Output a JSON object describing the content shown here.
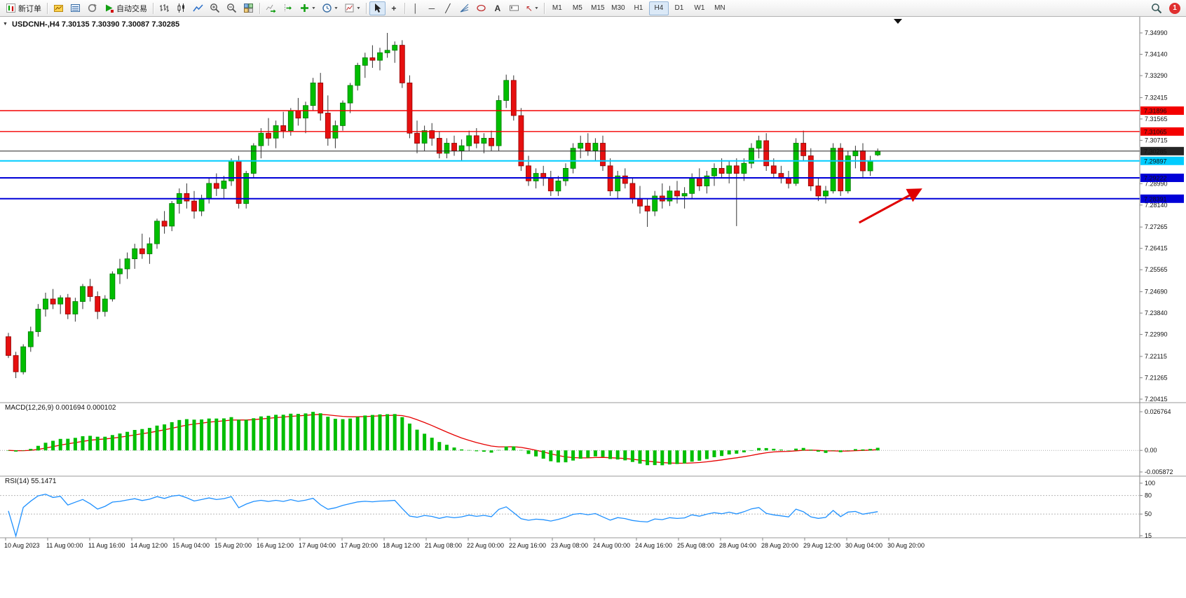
{
  "toolbar": {
    "new_order_label": "新订单",
    "autotrade_label": "自动交易",
    "text_tool_label": "A",
    "timeframes": [
      "M1",
      "M5",
      "M15",
      "M30",
      "H1",
      "H4",
      "D1",
      "W1",
      "MN"
    ],
    "active_timeframe": "H4",
    "notification_count": "1"
  },
  "icons": {
    "collapse": "▼",
    "caret": "▼",
    "vline": "│",
    "hline": "─",
    "trendline": "╱",
    "crosshair": "+",
    "arrows_tool": "↖"
  },
  "chart": {
    "title": "USDCNH-,H4 7.30135 7.30390 7.30087 7.30285"
  },
  "indicators": {
    "macd_label": "MACD(12,26,9) 0.001694 0.000102",
    "rsi_label": "RSI(14) 55.1471"
  },
  "chart_data": {
    "type": "candlestick",
    "symbol": "USDCNH-",
    "timeframe": "H4",
    "last_ohlc": {
      "open": 7.30135,
      "high": 7.3039,
      "low": 7.30087,
      "close": 7.30285
    },
    "price_range": {
      "top": 7.3499,
      "bottom": 7.20415
    },
    "colors": {
      "candle_up": "#00BE00",
      "candle_down": "#E61010",
      "wick": "#333333"
    },
    "y_axis_labels": [
      "7.34990",
      "7.34140",
      "7.33290",
      "7.32415",
      "7.31565",
      "7.30715",
      "7.28990",
      "7.28140",
      "7.27265",
      "7.26415",
      "7.25565",
      "7.24690",
      "7.23840",
      "7.22990",
      "7.22115",
      "7.21265",
      "7.20415"
    ],
    "x_labels": [
      "10 Aug 2023",
      "11 Aug 00:00",
      "11 Aug 16:00",
      "14 Aug 12:00",
      "15 Aug 04:00",
      "15 Aug 20:00",
      "16 Aug 12:00",
      "17 Aug 04:00",
      "17 Aug 20:00",
      "18 Aug 12:00",
      "21 Aug 08:00",
      "22 Aug 00:00",
      "22 Aug 16:00",
      "23 Aug 08:00",
      "24 Aug 00:00",
      "24 Aug 16:00",
      "25 Aug 08:00",
      "28 Aug 04:00",
      "28 Aug 20:00",
      "29 Aug 12:00",
      "30 Aug 04:00",
      "30 Aug 20:00"
    ],
    "ohlc": [
      [
        7.229,
        7.2305,
        7.2205,
        7.2215
      ],
      [
        7.2215,
        7.223,
        7.2125,
        7.215
      ],
      [
        7.215,
        7.226,
        7.214,
        7.225
      ],
      [
        7.225,
        7.233,
        7.223,
        7.231
      ],
      [
        7.231,
        7.242,
        7.229,
        7.24
      ],
      [
        7.24,
        7.2465,
        7.237,
        7.244
      ],
      [
        7.244,
        7.248,
        7.24,
        7.242
      ],
      [
        7.242,
        7.2455,
        7.238,
        7.2445
      ],
      [
        7.2445,
        7.246,
        7.236,
        7.238
      ],
      [
        7.238,
        7.2445,
        7.235,
        7.243
      ],
      [
        7.243,
        7.25,
        7.24,
        7.249
      ],
      [
        7.249,
        7.252,
        7.243,
        7.245
      ],
      [
        7.245,
        7.247,
        7.236,
        7.239
      ],
      [
        7.239,
        7.2455,
        7.237,
        7.244
      ],
      [
        7.244,
        7.255,
        7.243,
        7.254
      ],
      [
        7.254,
        7.26,
        7.25,
        7.256
      ],
      [
        7.256,
        7.2625,
        7.252,
        7.26
      ],
      [
        7.26,
        7.266,
        7.256,
        7.264
      ],
      [
        7.264,
        7.27,
        7.26,
        7.262
      ],
      [
        7.262,
        7.2685,
        7.258,
        7.266
      ],
      [
        7.266,
        7.276,
        7.264,
        7.275
      ],
      [
        7.275,
        7.279,
        7.27,
        7.273
      ],
      [
        7.273,
        7.283,
        7.271,
        7.282
      ],
      [
        7.282,
        7.288,
        7.278,
        7.286
      ],
      [
        7.286,
        7.29,
        7.28,
        7.283
      ],
      [
        7.283,
        7.287,
        7.276,
        7.279
      ],
      [
        7.279,
        7.2855,
        7.277,
        7.284
      ],
      [
        7.284,
        7.292,
        7.282,
        7.29
      ],
      [
        7.29,
        7.294,
        7.285,
        7.288
      ],
      [
        7.288,
        7.293,
        7.284,
        7.291
      ],
      [
        7.291,
        7.3,
        7.289,
        7.299
      ],
      [
        7.299,
        7.301,
        7.28,
        7.282
      ],
      [
        7.282,
        7.295,
        7.28,
        7.294
      ],
      [
        7.294,
        7.306,
        7.292,
        7.305
      ],
      [
        7.305,
        7.312,
        7.3,
        7.31
      ],
      [
        7.31,
        7.316,
        7.305,
        7.308
      ],
      [
        7.308,
        7.315,
        7.304,
        7.313
      ],
      [
        7.313,
        7.3185,
        7.308,
        7.311
      ],
      [
        7.311,
        7.32,
        7.309,
        7.319
      ],
      [
        7.319,
        7.324,
        7.313,
        7.316
      ],
      [
        7.316,
        7.3225,
        7.31,
        7.321
      ],
      [
        7.321,
        7.332,
        7.319,
        7.33
      ],
      [
        7.33,
        7.334,
        7.315,
        7.318
      ],
      [
        7.318,
        7.325,
        7.305,
        7.308
      ],
      [
        7.308,
        7.315,
        7.304,
        7.313
      ],
      [
        7.313,
        7.323,
        7.311,
        7.322
      ],
      [
        7.322,
        7.33,
        7.318,
        7.329
      ],
      [
        7.329,
        7.338,
        7.327,
        7.337
      ],
      [
        7.337,
        7.342,
        7.332,
        7.34
      ],
      [
        7.34,
        7.345,
        7.336,
        7.339
      ],
      [
        7.339,
        7.344,
        7.335,
        7.342
      ],
      [
        7.342,
        7.3499,
        7.34,
        7.343
      ],
      [
        7.343,
        7.3465,
        7.338,
        7.345
      ],
      [
        7.345,
        7.347,
        7.328,
        7.33
      ],
      [
        7.33,
        7.333,
        7.308,
        7.31
      ],
      [
        7.31,
        7.315,
        7.302,
        7.306
      ],
      [
        7.306,
        7.313,
        7.303,
        7.311
      ],
      [
        7.311,
        7.314,
        7.305,
        7.308
      ],
      [
        7.308,
        7.3105,
        7.3,
        7.302
      ],
      [
        7.302,
        7.308,
        7.3,
        7.306
      ],
      [
        7.306,
        7.309,
        7.301,
        7.303
      ],
      [
        7.303,
        7.3075,
        7.299,
        7.305
      ],
      [
        7.305,
        7.311,
        7.303,
        7.309
      ],
      [
        7.309,
        7.312,
        7.304,
        7.306
      ],
      [
        7.306,
        7.31,
        7.302,
        7.308
      ],
      [
        7.308,
        7.311,
        7.303,
        7.305
      ],
      [
        7.305,
        7.325,
        7.303,
        7.323
      ],
      [
        7.323,
        7.3333,
        7.32,
        7.331
      ],
      [
        7.331,
        7.333,
        7.315,
        7.317
      ],
      [
        7.317,
        7.32,
        7.295,
        7.297
      ],
      [
        7.297,
        7.301,
        7.289,
        7.291
      ],
      [
        7.291,
        7.296,
        7.288,
        7.294
      ],
      [
        7.294,
        7.297,
        7.289,
        7.292
      ],
      [
        7.292,
        7.295,
        7.285,
        7.287
      ],
      [
        7.287,
        7.293,
        7.285,
        7.291
      ],
      [
        7.291,
        7.298,
        7.289,
        7.296
      ],
      [
        7.296,
        7.306,
        7.294,
        7.304
      ],
      [
        7.304,
        7.309,
        7.3,
        7.306
      ],
      [
        7.306,
        7.31,
        7.301,
        7.303
      ],
      [
        7.303,
        7.308,
        7.299,
        7.306
      ],
      [
        7.306,
        7.309,
        7.295,
        7.297
      ],
      [
        7.297,
        7.3,
        7.285,
        7.287
      ],
      [
        7.287,
        7.295,
        7.284,
        7.293
      ],
      [
        7.293,
        7.296,
        7.288,
        7.29
      ],
      [
        7.29,
        7.292,
        7.282,
        7.284
      ],
      [
        7.284,
        7.289,
        7.278,
        7.281
      ],
      [
        7.281,
        7.284,
        7.2727,
        7.279
      ],
      [
        7.279,
        7.287,
        7.277,
        7.285
      ],
      [
        7.285,
        7.29,
        7.28,
        7.283
      ],
      [
        7.283,
        7.289,
        7.281,
        7.287
      ],
      [
        7.287,
        7.291,
        7.282,
        7.285
      ],
      [
        7.285,
        7.2885,
        7.28,
        7.286
      ],
      [
        7.286,
        7.294,
        7.284,
        7.292
      ],
      [
        7.292,
        7.296,
        7.287,
        7.289
      ],
      [
        7.289,
        7.295,
        7.286,
        7.293
      ],
      [
        7.293,
        7.298,
        7.289,
        7.296
      ],
      [
        7.296,
        7.3,
        7.292,
        7.294
      ],
      [
        7.294,
        7.299,
        7.29,
        7.297
      ],
      [
        7.297,
        7.3,
        7.273,
        7.294
      ],
      [
        7.294,
        7.3,
        7.291,
        7.298
      ],
      [
        7.298,
        7.306,
        7.296,
        7.304
      ],
      [
        7.304,
        7.309,
        7.3,
        7.307
      ],
      [
        7.307,
        7.31,
        7.295,
        7.297
      ],
      [
        7.297,
        7.3,
        7.292,
        7.294
      ],
      [
        7.294,
        7.297,
        7.29,
        7.292
      ],
      [
        7.292,
        7.295,
        7.288,
        7.29
      ],
      [
        7.29,
        7.308,
        7.289,
        7.306
      ],
      [
        7.306,
        7.311,
        7.299,
        7.301
      ],
      [
        7.301,
        7.304,
        7.287,
        7.289
      ],
      [
        7.289,
        7.292,
        7.283,
        7.285
      ],
      [
        7.285,
        7.289,
        7.282,
        7.287
      ],
      [
        7.287,
        7.306,
        7.286,
        7.304
      ],
      [
        7.304,
        7.306,
        7.285,
        7.287
      ],
      [
        7.287,
        7.303,
        7.286,
        7.301
      ],
      [
        7.301,
        7.305,
        7.296,
        7.303
      ],
      [
        7.303,
        7.306,
        7.292,
        7.295
      ],
      [
        7.295,
        7.301,
        7.293,
        7.299
      ],
      [
        7.30135,
        7.3039,
        7.30087,
        7.30285
      ]
    ],
    "levels": [
      {
        "price": 7.31896,
        "label": "7.31896",
        "color": "#F40000",
        "width": 1.4,
        "text_color": "#ffffff",
        "kind": "resistance-line"
      },
      {
        "price": 7.31065,
        "label": "7.31065",
        "color": "#F40000",
        "width": 1.4,
        "text_color": "#ffffff",
        "kind": "resistance-line"
      },
      {
        "price": 7.30285,
        "label": "7.30285",
        "color": "#262626",
        "width": 1,
        "text_color": "#ffffff",
        "kind": "bid-line"
      },
      {
        "price": 7.29897,
        "label": "7.29897",
        "color": "#00CCFF",
        "width": 2,
        "text_color": "#00333d",
        "kind": "line"
      },
      {
        "price": 7.29222,
        "label": "7.29222",
        "color": "#0000D8",
        "width": 2,
        "text_color": "#ffffff",
        "kind": "support-line"
      },
      {
        "price": 7.28391,
        "label": "7.28391",
        "color": "#0000D8",
        "width": 2,
        "text_color": "#ffffff",
        "kind": "support-line"
      }
    ],
    "macd": {
      "settings": "12,26,9",
      "value": "0.001694",
      "signal_value": "0.000102",
      "axis_labels": [
        "0.026764",
        "0.00",
        "-0.005872"
      ],
      "histogram_color": "#00BE00",
      "signal_color": "#E60000"
    },
    "rsi": {
      "settings": "14",
      "value": "55.1471",
      "axis_labels": [
        "100",
        "80",
        "50",
        "15"
      ],
      "levels": [
        80,
        50
      ],
      "line_color": "#1E90FF"
    },
    "annotation_arrow": {
      "color": "#E00000",
      "from": {
        "bar": 114.5,
        "price": 7.2744
      },
      "to": {
        "bar": 122.5,
        "price": 7.2872
      }
    }
  }
}
